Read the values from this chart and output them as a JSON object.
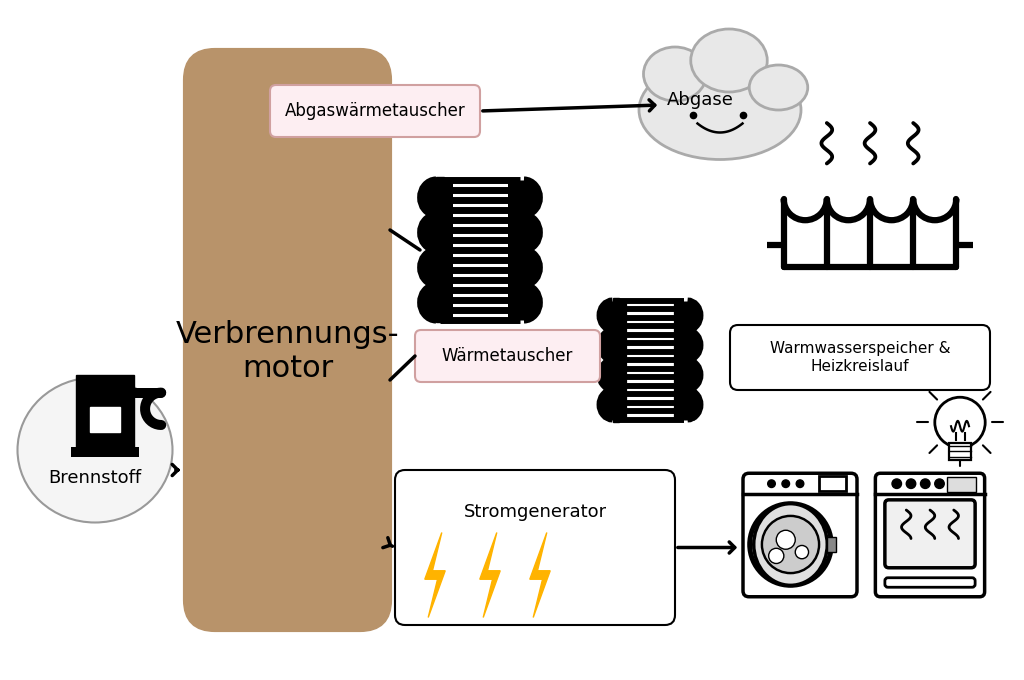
{
  "bg_color": "#ffffff",
  "motor_color": "#b8936a",
  "box_fill_pink": "#fdeef2",
  "arrow_color": "#000000",
  "text_color": "#000000",
  "motor_text": "Verbrennungs-\nmotor",
  "brennstoff_text": "Brennstoff",
  "abgas_box_text": "Abgaswärmetauscher",
  "abgas_text": "Abgase",
  "waerme_box_text": "Wärmetauscher",
  "warmwasser_text": "Warmwasserspeicher &\nHeizkreislauf",
  "strom_box_text": "Stromgenerator",
  "lightning_color": "#FFB300"
}
